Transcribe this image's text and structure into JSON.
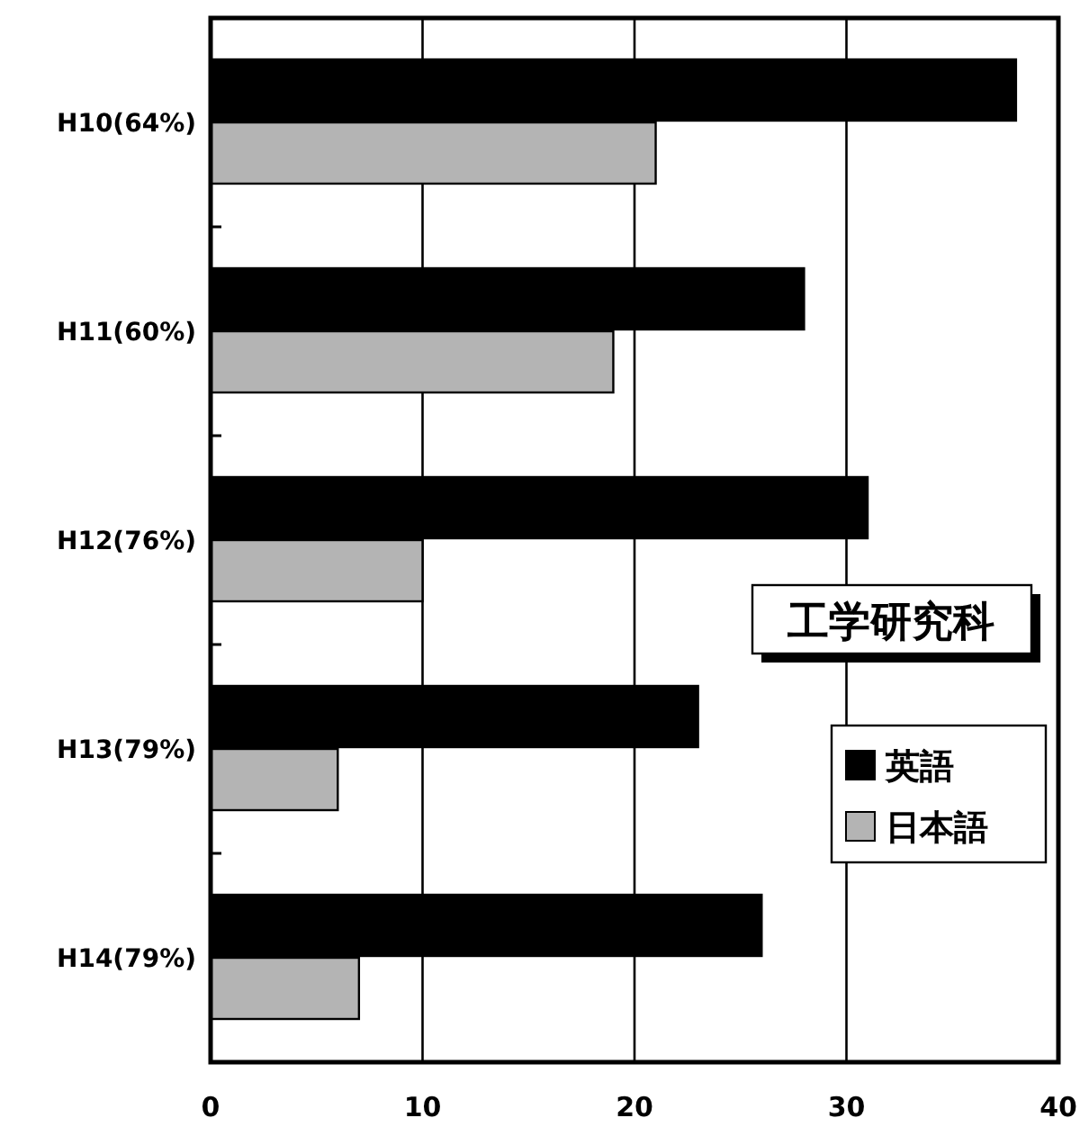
{
  "chart_data": {
    "type": "bar",
    "orientation": "horizontal",
    "categories": [
      "H10(64%)",
      "H11(60%)",
      "H12(76%)",
      "H13(79%)",
      "H14(79%)"
    ],
    "series": [
      {
        "name": "英語",
        "color": "#000000",
        "values": [
          38,
          28,
          31,
          23,
          26
        ]
      },
      {
        "name": "日本語",
        "color": "#b4b4b4",
        "values": [
          21,
          19,
          10,
          6,
          7
        ]
      }
    ],
    "xlim": [
      0,
      40
    ],
    "xticks": [
      0,
      10,
      20,
      30,
      40
    ],
    "grid": "x",
    "legend": "right",
    "annotations": [
      "工学研究科"
    ]
  }
}
